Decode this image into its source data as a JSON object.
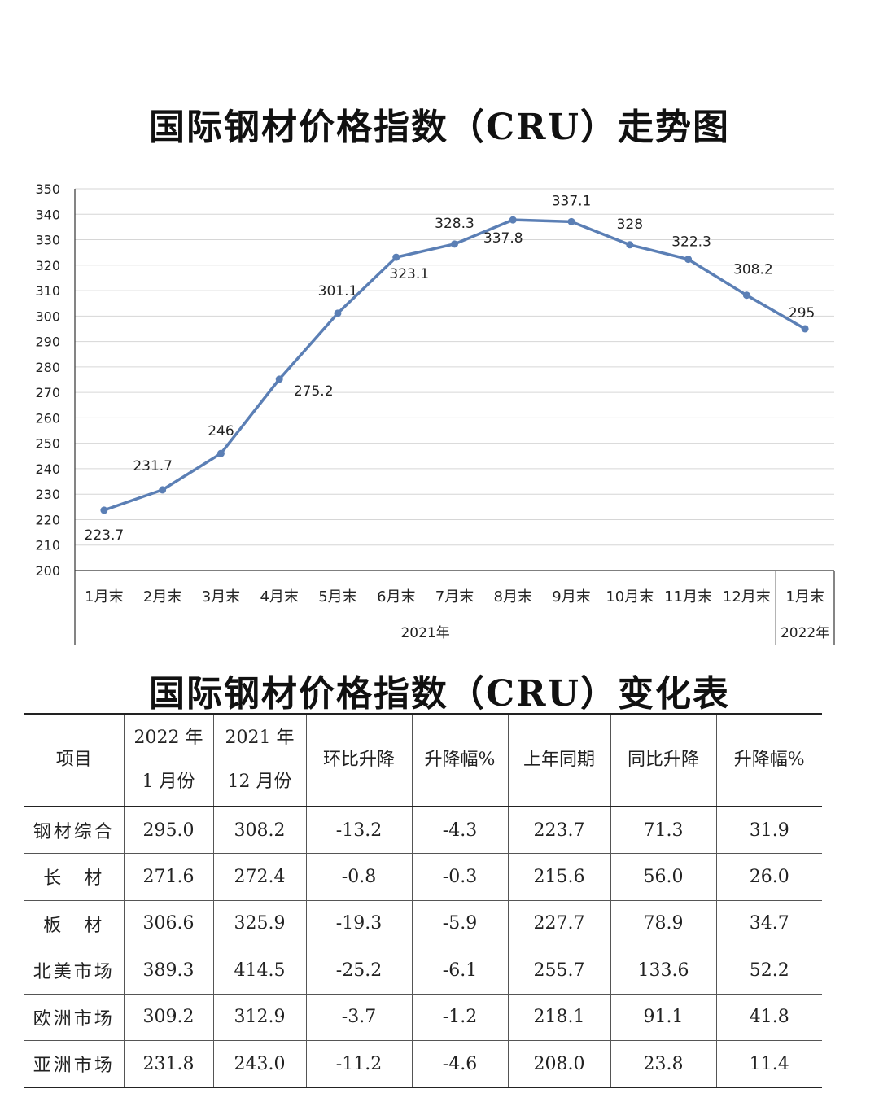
{
  "chart_title": "国际钢材价格指数（CRU）走势图",
  "table_title": "国际钢材价格指数（CRU）变化表",
  "chart_data": {
    "type": "line",
    "categories": [
      "1月末",
      "2月末",
      "3月末",
      "4月末",
      "5月末",
      "6月末",
      "7月末",
      "8月末",
      "9月末",
      "10月末",
      "11月末",
      "12月末",
      "1月末"
    ],
    "groups": [
      {
        "label": "2021年",
        "count": 12
      },
      {
        "label": "2022年",
        "count": 1
      }
    ],
    "series": [
      {
        "values": [
          223.7,
          231.7,
          246,
          275.2,
          301.1,
          323.1,
          328.3,
          337.8,
          337.1,
          328,
          322.3,
          308.2,
          295
        ]
      }
    ],
    "data_labels": [
      "223.7",
      "231.7",
      "246",
      "275.2",
      "301.1",
      "323.1",
      "328.3",
      "337.8",
      "337.1",
      "328",
      "322.3",
      "308.2",
      "295"
    ],
    "ylim": [
      200,
      350
    ],
    "yticks": [
      "200",
      "210",
      "220",
      "230",
      "240",
      "250",
      "260",
      "270",
      "280",
      "290",
      "300",
      "310",
      "320",
      "330",
      "340",
      "350"
    ],
    "grid": true,
    "line_color": "#5b7fb5"
  },
  "table": {
    "headers": [
      {
        "lines": [
          "项目"
        ]
      },
      {
        "lines": [
          "2022 年",
          "1 月份"
        ]
      },
      {
        "lines": [
          "2021 年",
          "12 月份"
        ]
      },
      {
        "lines": [
          "环比升降"
        ]
      },
      {
        "lines": [
          "升降幅%"
        ]
      },
      {
        "lines": [
          "上年同期"
        ]
      },
      {
        "lines": [
          "同比升降"
        ]
      },
      {
        "lines": [
          "升降幅%"
        ]
      }
    ],
    "rows": [
      [
        "钢材综合",
        "295.0",
        "308.2",
        "-13.2",
        "-4.3",
        "223.7",
        "71.3",
        "31.9"
      ],
      [
        "长　材",
        "271.6",
        "272.4",
        "-0.8",
        "-0.3",
        "215.6",
        "56.0",
        "26.0"
      ],
      [
        "板　材",
        "306.6",
        "325.9",
        "-19.3",
        "-5.9",
        "227.7",
        "78.9",
        "34.7"
      ],
      [
        "北美市场",
        "389.3",
        "414.5",
        "-25.2",
        "-6.1",
        "255.7",
        "133.6",
        "52.2"
      ],
      [
        "欧洲市场",
        "309.2",
        "312.9",
        "-3.7",
        "-1.2",
        "218.1",
        "91.1",
        "41.8"
      ],
      [
        "亚洲市场",
        "231.8",
        "243.0",
        "-11.2",
        "-4.6",
        "208.0",
        "23.8",
        "11.4"
      ]
    ]
  }
}
